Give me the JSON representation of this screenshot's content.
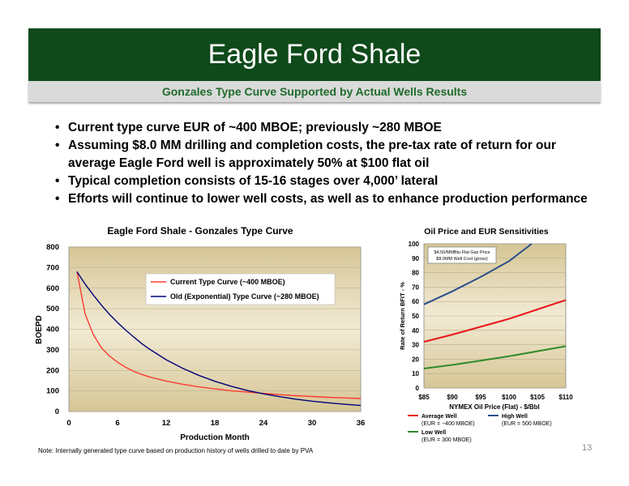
{
  "slide": {
    "title": "Eagle Ford Shale",
    "subtitle": "Gonzales Type Curve Supported by Actual Wells Results",
    "bullets": [
      "Current type curve EUR of ~400 MBOE; previously ~280 MBOE",
      "Assuming $8.0 MM drilling and completion costs, the pre-tax rate of return for our average Eagle Ford well is approximately 50% at $100 flat oil",
      "Typical completion consists of 15-16 stages over 4,000’ lateral",
      "Efforts will continue to lower well costs, as well as to enhance production performance"
    ],
    "footnote": "Note: Internally generated type curve based on production history of wells drilled to date by PVA",
    "page_number": "13",
    "colors": {
      "title_bg": "#0f4a1a",
      "subtitle_text": "#1f6b2a",
      "plot_bg": "#e5d9b6"
    }
  },
  "chart_data": [
    {
      "type": "line",
      "title": "Eagle Ford Shale - Gonzales Type Curve",
      "xlabel": "Production Month",
      "ylabel": "BOEPD",
      "xlim": [
        0,
        36
      ],
      "ylim": [
        0,
        800
      ],
      "xticks": [
        "0",
        "6",
        "12",
        "18",
        "24",
        "30",
        "36"
      ],
      "yticks": [
        "0",
        "100",
        "200",
        "300",
        "400",
        "500",
        "600",
        "700",
        "800"
      ],
      "grid": true,
      "legend_position": "upper-right",
      "series": [
        {
          "name": "Current Type Curve (~400 MBOE)",
          "color": "#ff3b30",
          "x": [
            1,
            2,
            3,
            4,
            5,
            6,
            7,
            8,
            9,
            10,
            12,
            14,
            16,
            18,
            20,
            22,
            24,
            26,
            28,
            30,
            32,
            34,
            36
          ],
          "y": [
            680,
            475,
            375,
            310,
            270,
            240,
            215,
            195,
            180,
            167,
            148,
            133,
            120,
            110,
            101,
            94,
            88,
            82,
            77,
            73,
            69,
            66,
            63
          ]
        },
        {
          "name": "Old (Exponential) Type Curve (~280 MBOE)",
          "color": "#00007a",
          "x": [
            1,
            2,
            3,
            4,
            5,
            6,
            7,
            8,
            9,
            10,
            12,
            14,
            16,
            18,
            20,
            22,
            24,
            26,
            28,
            30,
            32,
            34,
            36
          ],
          "y": [
            680,
            620,
            567,
            518,
            473,
            433,
            396,
            362,
            330,
            302,
            252,
            211,
            176,
            147,
            123,
            102,
            86,
            72,
            60,
            50,
            42,
            35,
            29
          ]
        }
      ]
    },
    {
      "type": "line",
      "title": "Oil Price and EUR Sensitivities",
      "xlabel": "NYMEX Oil Price (Flat) - $/Bbl",
      "ylabel": "Rate of Return BFIT - %",
      "xlim": [
        85,
        110
      ],
      "ylim": [
        0,
        100
      ],
      "xticks": [
        "$85",
        "$90",
        "$95",
        "$100",
        "$105",
        "$110"
      ],
      "yticks": [
        "0",
        "10",
        "20",
        "30",
        "40",
        "50",
        "60",
        "70",
        "80",
        "90",
        "100"
      ],
      "grid": true,
      "annotation": [
        "$4.50/MMBtu Flat Gas Price",
        "$8.0MM Well Cost (gross)"
      ],
      "legend_position": "bottom",
      "series": [
        {
          "name": "Average Well",
          "legend_sub": "(EUR = ~400 MBOE)",
          "color": "#e8151a",
          "x": [
            85,
            90,
            95,
            100,
            105,
            110
          ],
          "y": [
            32,
            37,
            42.5,
            48,
            54.5,
            61
          ]
        },
        {
          "name": "High Well",
          "legend_sub": "(EUR = 500 MBOE)",
          "color": "#2b4f8c",
          "x": [
            85,
            90,
            95,
            100,
            104
          ],
          "y": [
            58,
            67,
            77,
            88,
            100
          ]
        },
        {
          "name": "Low Well",
          "legend_sub": "(EUR = 300 MBOE)",
          "color": "#2f8a2a",
          "x": [
            85,
            90,
            95,
            100,
            105,
            110
          ],
          "y": [
            13.5,
            16,
            19,
            22,
            25.5,
            29
          ]
        }
      ]
    }
  ]
}
